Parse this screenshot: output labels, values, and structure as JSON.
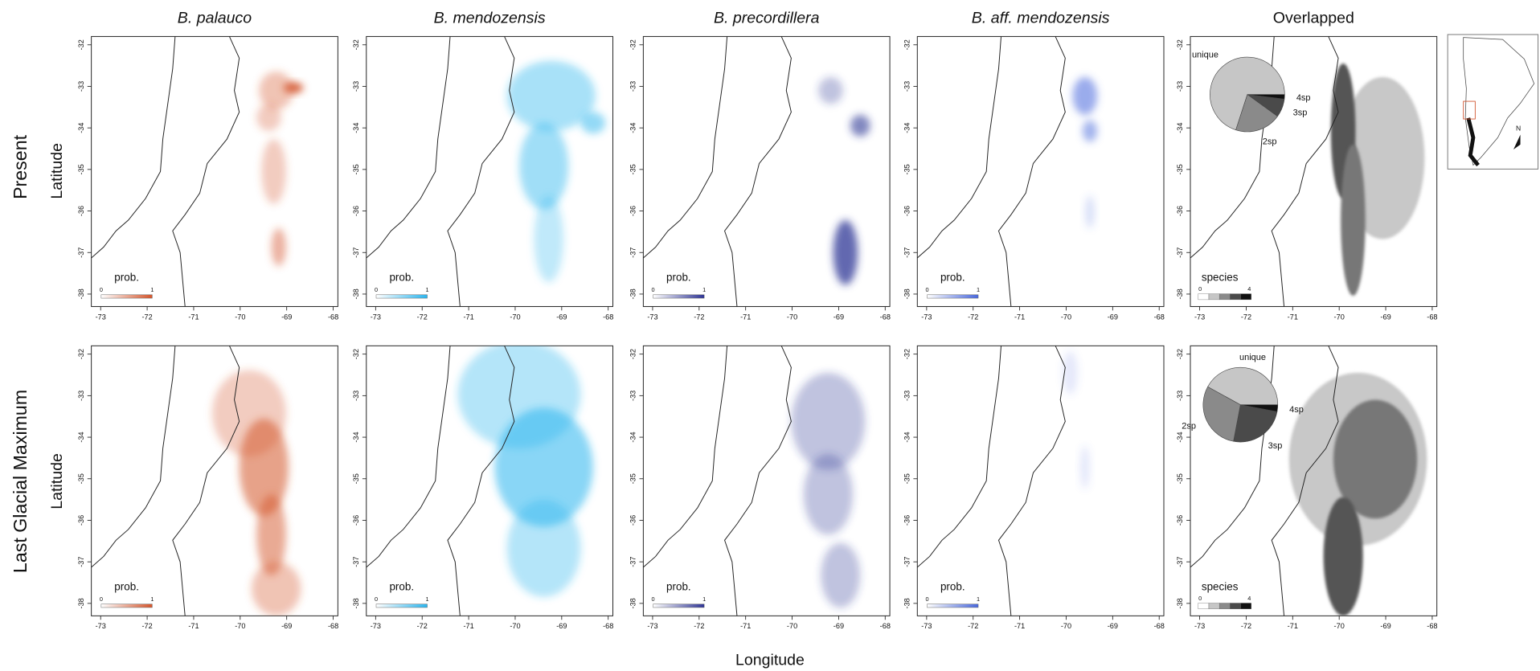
{
  "figure": {
    "column_titles": [
      "B. palauco",
      "B. mendozensis",
      "B. precordillera",
      "B. aff. mendozensis",
      "Overlapped"
    ],
    "row_titles": [
      "Present",
      "Last Glacial Maximum"
    ],
    "y_label": "Latitude",
    "x_label": "Longitude",
    "xlim": [
      -73.2,
      -67.9
    ],
    "xticks": [
      -73,
      -72,
      -71,
      -70,
      -69,
      -68
    ],
    "ylim": [
      -38.3,
      -31.8
    ],
    "yticks": [
      -32,
      -33,
      -34,
      -35,
      -36,
      -37,
      -38
    ],
    "species_colors": [
      "#d4552c",
      "#2bb5ee",
      "#2f3595",
      "#4867dc"
    ],
    "prob_legend_title": "prob.",
    "prob_ticks": [
      0,
      1
    ],
    "species_legend_title": "species",
    "species_ticks": [
      0,
      4
    ],
    "pie_colors": [
      "#c6c6c6",
      "#8a8a8a",
      "#4a4a4a",
      "#111111"
    ],
    "pies": [
      {
        "labels": [
          "unique",
          "2sp",
          "3sp",
          "4sp"
        ],
        "values": [
          70,
          20,
          8,
          2
        ]
      },
      {
        "labels": [
          "unique",
          "2sp",
          "3sp",
          "4sp"
        ],
        "values": [
          42,
          30,
          25,
          3
        ]
      }
    ],
    "inset": {
      "north_label": "N"
    }
  }
}
